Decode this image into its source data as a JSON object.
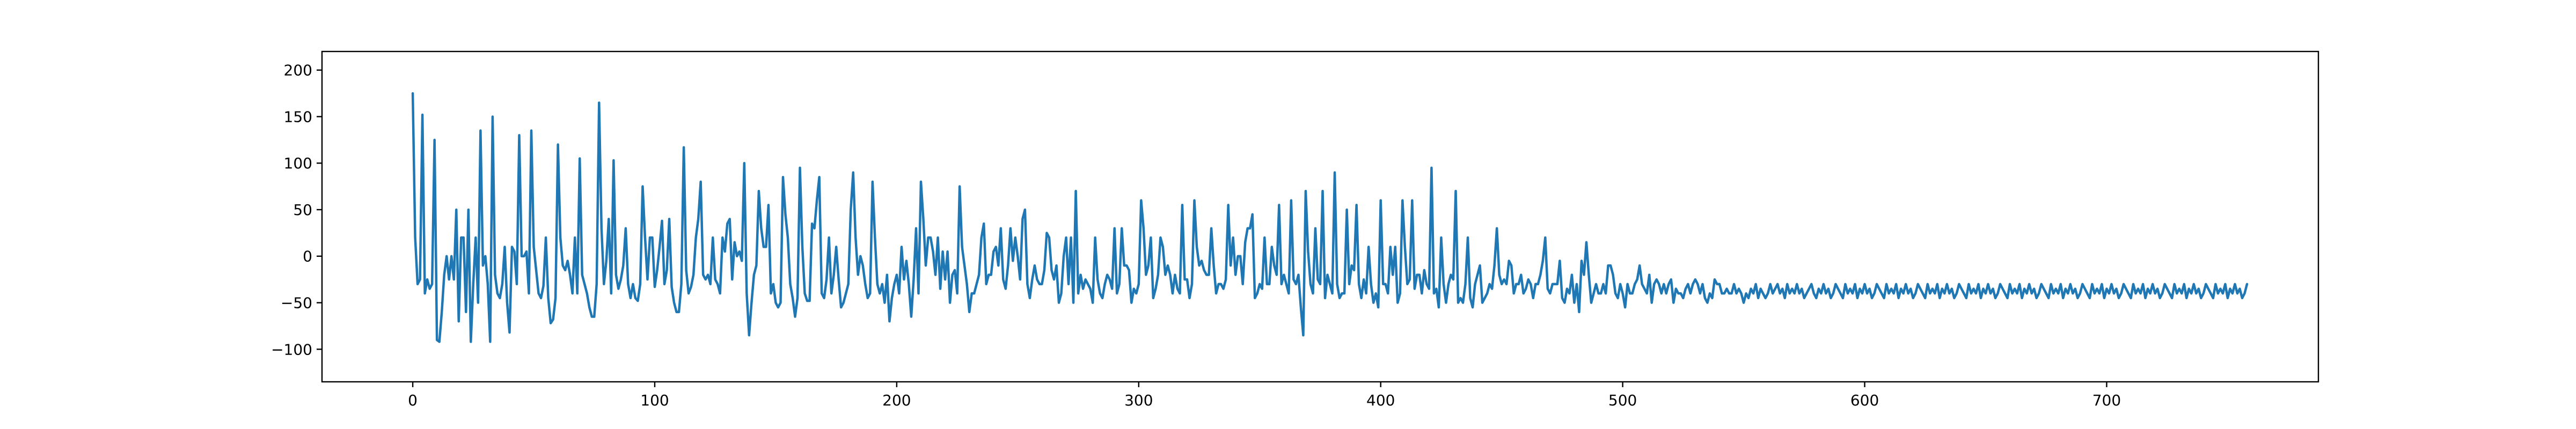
{
  "chart_data": {
    "type": "line",
    "title": "",
    "xlabel": "",
    "ylabel": "",
    "xlim": [
      -37.5,
      787.5
    ],
    "ylim": [
      -135,
      220
    ],
    "grid": false,
    "x_ticks": [
      0,
      100,
      200,
      300,
      400,
      500,
      600,
      700
    ],
    "y_ticks": [
      -100,
      -50,
      0,
      50,
      100,
      150,
      200
    ],
    "series_color": "#1f77b4",
    "series": [
      {
        "values": [
          175,
          20,
          -30,
          -25,
          152,
          -40,
          -25,
          -35,
          -30,
          125,
          -90,
          -92,
          -60,
          -20,
          0,
          -25,
          0,
          -25,
          50,
          -70,
          20,
          20,
          -60,
          50,
          -92,
          -30,
          20,
          -50,
          135,
          -10,
          0,
          -30,
          -92,
          150,
          -20,
          -40,
          -45,
          -30,
          10,
          -50,
          -82,
          10,
          5,
          -30,
          130,
          0,
          0,
          5,
          -40,
          135,
          10,
          -15,
          -40,
          -45,
          -32,
          20,
          -45,
          -72,
          -68,
          -45,
          120,
          20,
          -10,
          -15,
          -5,
          -20,
          -40,
          20,
          -40,
          105,
          -20,
          -30,
          -40,
          -55,
          -65,
          -65,
          -30,
          165,
          30,
          -30,
          -5,
          40,
          -40,
          103,
          -20,
          -35,
          -25,
          -10,
          30,
          -30,
          -45,
          -30,
          -45,
          -48,
          -30,
          75,
          20,
          -25,
          20,
          20,
          -33,
          -15,
          10,
          38,
          -30,
          -15,
          40,
          -33,
          -50,
          -60,
          -60,
          -30,
          117,
          -15,
          -40,
          -33,
          -20,
          20,
          40,
          80,
          -20,
          -25,
          -20,
          -30,
          20,
          -25,
          -30,
          -40,
          20,
          5,
          35,
          40,
          -25,
          15,
          0,
          5,
          -5,
          100,
          -40,
          -85,
          -50,
          -20,
          -10,
          70,
          30,
          10,
          10,
          55,
          -40,
          -30,
          -50,
          -55,
          -50,
          85,
          45,
          20,
          -30,
          -45,
          -65,
          -45,
          95,
          10,
          -40,
          -48,
          -48,
          35,
          30,
          60,
          85,
          -40,
          -45,
          -25,
          20,
          -40,
          -20,
          10,
          -25,
          -55,
          -50,
          -40,
          -30,
          50,
          90,
          20,
          -20,
          0,
          -10,
          -30,
          -45,
          -40,
          80,
          20,
          -30,
          -40,
          -30,
          -50,
          -20,
          -70,
          -45,
          -30,
          -20,
          -40,
          10,
          -25,
          -5,
          -30,
          -65,
          -25,
          30,
          -40,
          80,
          40,
          -10,
          20,
          20,
          5,
          -20,
          20,
          -35,
          5,
          -25,
          5,
          -50,
          -20,
          -15,
          -40,
          75,
          10,
          -10,
          -30,
          -60,
          -40,
          -40,
          -30,
          -20,
          20,
          35,
          -30,
          -20,
          -20,
          5,
          10,
          -10,
          30,
          -25,
          -35,
          -10,
          30,
          -5,
          20,
          0,
          -25,
          40,
          50,
          -30,
          -45,
          -25,
          -10,
          -25,
          -30,
          -30,
          -15,
          25,
          20,
          -15,
          -25,
          -10,
          -50,
          -40,
          0,
          20,
          -30,
          20,
          -50,
          70,
          -40,
          -20,
          -35,
          -25,
          -30,
          -35,
          -50,
          20,
          -25,
          -40,
          -45,
          -30,
          -20,
          -25,
          -35,
          30,
          -40,
          -30,
          30,
          -10,
          -10,
          -15,
          -50,
          -35,
          -40,
          -30,
          60,
          30,
          -20,
          -10,
          20,
          -45,
          -35,
          -20,
          20,
          10,
          -20,
          -10,
          -20,
          -40,
          -20,
          -35,
          -40,
          55,
          -25,
          -25,
          -45,
          -30,
          60,
          10,
          -10,
          -5,
          -15,
          -20,
          -20,
          30,
          -10,
          -40,
          -30,
          -30,
          -35,
          -25,
          55,
          -10,
          20,
          -20,
          0,
          0,
          -30,
          15,
          30,
          30,
          45,
          -45,
          -40,
          -30,
          -35,
          20,
          -30,
          -30,
          10,
          -10,
          -20,
          55,
          -30,
          -20,
          -30,
          -40,
          60,
          -25,
          -30,
          -20,
          -55,
          -85,
          70,
          5,
          -30,
          -40,
          30,
          -25,
          -30,
          70,
          -45,
          -20,
          -30,
          -40,
          90,
          -30,
          -45,
          -40,
          -40,
          50,
          -30,
          -10,
          -15,
          55,
          -30,
          -45,
          -25,
          -40,
          10,
          -30,
          -50,
          -40,
          -55,
          60,
          -30,
          -30,
          -40,
          10,
          -20,
          10,
          -50,
          -40,
          60,
          10,
          -30,
          -25,
          60,
          -35,
          -20,
          -20,
          -40,
          -15,
          -30,
          -35,
          95,
          -40,
          -35,
          -55,
          20,
          -30,
          -50,
          -30,
          -20,
          -25,
          70,
          -50,
          -45,
          -50,
          -30,
          20,
          -45,
          -55,
          -30,
          -20,
          -10,
          -50,
          -45,
          -40,
          -30,
          -35,
          -10,
          30,
          -20,
          -30,
          -25,
          -30,
          -5,
          -10,
          -40,
          -30,
          -30,
          -20,
          -40,
          -35,
          -25,
          -30,
          -45,
          -30,
          -30,
          -20,
          -5,
          20,
          -35,
          -40,
          -30,
          -30,
          -30,
          -5,
          -45,
          -50,
          -35,
          -40,
          -20,
          -50,
          -30,
          -60,
          -5,
          -20,
          15,
          -20,
          -50,
          -40,
          -30,
          -40,
          -40,
          -30,
          -40,
          -10,
          -10,
          -20,
          -40,
          -45,
          -30,
          -40,
          -55,
          -30,
          -40,
          -40,
          -30,
          -25,
          -10,
          -30,
          -35,
          -40,
          -20,
          -50,
          -30,
          -25,
          -30,
          -40,
          -30,
          -40,
          -30,
          -25,
          -50,
          -35,
          -40,
          -40,
          -45,
          -35,
          -30,
          -40,
          -30,
          -25,
          -30,
          -40,
          -30,
          -45,
          -50,
          -40,
          -45,
          -25,
          -30,
          -30,
          -40,
          -40,
          -35,
          -40,
          -40,
          -30,
          -40,
          -35,
          -40,
          -50,
          -40,
          -45,
          -35,
          -40,
          -30,
          -45,
          -35,
          -40,
          -45,
          -40,
          -30,
          -40,
          -35,
          -30,
          -40,
          -35,
          -45,
          -30,
          -40,
          -35,
          -40,
          -30,
          -40,
          -35,
          -45,
          -40,
          -35,
          -30,
          -40,
          -45,
          -35,
          -40,
          -30,
          -40,
          -35,
          -45,
          -40,
          -30,
          -35,
          -40,
          -45,
          -30,
          -40,
          -35,
          -40,
          -30,
          -45,
          -35,
          -40,
          -30,
          -40,
          -35,
          -45,
          -40,
          -30,
          -35,
          -40,
          -45,
          -30,
          -40,
          -35,
          -40,
          -30,
          -45,
          -35,
          -40,
          -30,
          -40,
          -35,
          -45,
          -40,
          -30,
          -35,
          -40,
          -45,
          -30,
          -40,
          -35,
          -40,
          -30,
          -45,
          -35,
          -40,
          -30,
          -40,
          -35,
          -45,
          -40,
          -30,
          -35,
          -40,
          -45,
          -30,
          -40,
          -35,
          -40,
          -30,
          -45,
          -35,
          -40,
          -30,
          -40,
          -35,
          -45,
          -40,
          -30,
          -35,
          -40,
          -45,
          -30,
          -40,
          -35,
          -40,
          -30,
          -45,
          -35,
          -40,
          -30,
          -40,
          -35,
          -45,
          -40,
          -30,
          -35,
          -40,
          -45,
          -30,
          -40,
          -35,
          -40,
          -30,
          -45,
          -35,
          -40,
          -30,
          -40,
          -35,
          -45,
          -40,
          -30,
          -35,
          -40,
          -45,
          -30,
          -40,
          -35,
          -40,
          -30,
          -45,
          -35,
          -40,
          -30,
          -40,
          -35,
          -45,
          -40,
          -30,
          -35,
          -40,
          -45,
          -30,
          -40,
          -35,
          -40,
          -30,
          -45,
          -35,
          -40,
          -30,
          -40,
          -35,
          -45,
          -40,
          -30,
          -35,
          -40,
          -45,
          -30,
          -40,
          -35,
          -40,
          -30,
          -45,
          -35,
          -40,
          -30,
          -40,
          -35,
          -45,
          -40,
          -30,
          -35,
          -40,
          -45,
          -30,
          -40,
          -35,
          -40,
          -30,
          -45,
          -35,
          -40,
          -30,
          -40,
          -35,
          -45,
          -40,
          -30
        ]
      }
    ]
  }
}
